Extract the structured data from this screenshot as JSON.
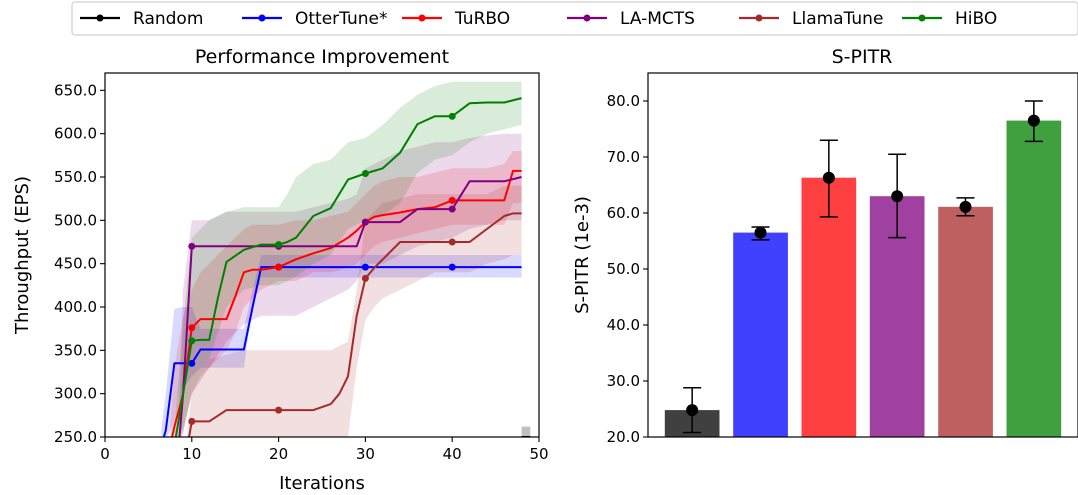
{
  "legend": {
    "entries": [
      {
        "label": "Random",
        "color": "#000000"
      },
      {
        "label": "OtterTune*",
        "color": "#0000ff"
      },
      {
        "label": "TuRBO",
        "color": "#ff0000"
      },
      {
        "label": "LA-MCTS",
        "color": "#800080"
      },
      {
        "label": "LlamaTune",
        "color": "#a52a2a"
      },
      {
        "label": "HiBO",
        "color": "#008000"
      }
    ]
  },
  "chart_data": [
    {
      "type": "line",
      "title": "Performance Improvement",
      "xlabel": "Iterations",
      "ylabel": "Throughput (EPS)",
      "xlim": [
        0,
        50
      ],
      "ylim": [
        250,
        670
      ],
      "xticks": [
        "0",
        "10",
        "20",
        "30",
        "40",
        "50"
      ],
      "xtick_values": [
        0,
        10,
        20,
        30,
        40,
        50
      ],
      "yticks": [
        "250.0",
        "300.0",
        "350.0",
        "400.0",
        "450.0",
        "500.0",
        "550.0",
        "600.0",
        "650.0"
      ],
      "ytick_values": [
        250,
        300,
        350,
        400,
        450,
        500,
        550,
        600,
        650
      ],
      "grid": false,
      "series": [
        {
          "name": "Random",
          "color": "#000000",
          "x": [
            48,
            49
          ],
          "y": [
            250,
            250
          ],
          "band_low": [
            244,
            244
          ],
          "band_high": [
            262,
            262
          ],
          "markers": []
        },
        {
          "name": "OtterTune*",
          "color": "#0000ff",
          "x": [
            6.5,
            7,
            8,
            9,
            10,
            11,
            12,
            13,
            14,
            15,
            16,
            17,
            18,
            19,
            20,
            22,
            24,
            26,
            28,
            30,
            32,
            34,
            36,
            38,
            40,
            42,
            44,
            46,
            48
          ],
          "y": [
            240,
            258,
            335,
            335,
            335,
            351,
            351,
            351,
            351,
            351,
            351,
            400,
            446,
            446,
            446,
            446,
            446,
            446,
            446,
            446,
            446,
            446,
            446,
            446,
            446,
            446,
            446,
            446,
            446
          ],
          "band_low": [
            240,
            245,
            270,
            305,
            320,
            330,
            330,
            330,
            330,
            330,
            330,
            400,
            434,
            434,
            434,
            434,
            434,
            434,
            434,
            434,
            434,
            434,
            434,
            434,
            434,
            434,
            434,
            434,
            434
          ],
          "band_high": [
            260,
            300,
            398,
            400,
            400,
            375,
            375,
            375,
            375,
            375,
            375,
            420,
            460,
            460,
            460,
            460,
            460,
            460,
            460,
            460,
            460,
            460,
            460,
            460,
            460,
            460,
            460,
            460,
            460
          ],
          "markers": [
            10,
            20,
            30,
            40
          ]
        },
        {
          "name": "TuRBO",
          "color": "#ff0000",
          "x": [
            7.5,
            8,
            9,
            10,
            11,
            12,
            13,
            14,
            15,
            16,
            17,
            18,
            20,
            22,
            24,
            26,
            28,
            29,
            30,
            31,
            32,
            34,
            36,
            38,
            40,
            42,
            44,
            46,
            47,
            48
          ],
          "y": [
            240,
            262,
            300,
            376,
            386,
            386,
            386,
            386,
            412,
            440,
            443,
            443,
            446,
            455,
            462,
            468,
            480,
            488,
            498,
            504,
            506,
            509,
            513,
            515,
            523,
            523,
            523,
            523,
            557,
            557
          ],
          "band_low": [
            240,
            245,
            260,
            300,
            320,
            330,
            340,
            350,
            370,
            400,
            410,
            420,
            430,
            430,
            440,
            440,
            445,
            450,
            460,
            470,
            475,
            480,
            485,
            490,
            495,
            495,
            495,
            495,
            520,
            520
          ],
          "band_high": [
            260,
            330,
            390,
            420,
            440,
            450,
            460,
            470,
            480,
            490,
            495,
            495,
            495,
            500,
            500,
            505,
            510,
            520,
            530,
            540,
            545,
            550,
            550,
            555,
            560,
            560,
            560,
            565,
            580,
            580
          ],
          "markers": [
            10,
            20,
            30,
            40
          ]
        },
        {
          "name": "LA-MCTS",
          "color": "#800080",
          "x": [
            8.5,
            9,
            10,
            12,
            14,
            16,
            18,
            20,
            22,
            24,
            26,
            28,
            29,
            30,
            32,
            34,
            36,
            38,
            40,
            42,
            44,
            46,
            48
          ],
          "y": [
            240,
            300,
            470,
            470,
            470,
            470,
            470,
            470,
            470,
            470,
            470,
            470,
            470,
            498,
            498,
            498,
            513,
            513,
            513,
            545,
            545,
            545,
            550
          ],
          "band_low": [
            240,
            255,
            300,
            330,
            360,
            380,
            390,
            390,
            390,
            400,
            410,
            420,
            430,
            450,
            450,
            460,
            470,
            475,
            480,
            490,
            495,
            500,
            500
          ],
          "band_high": [
            260,
            420,
            500,
            500,
            510,
            510,
            510,
            510,
            510,
            515,
            520,
            525,
            530,
            560,
            570,
            580,
            585,
            590,
            590,
            595,
            598,
            600,
            600
          ],
          "markers": [
            10,
            20,
            30,
            40
          ]
        },
        {
          "name": "LlamaTune",
          "color": "#a52a2a",
          "x": [
            9.5,
            10,
            12,
            14,
            16,
            18,
            20,
            22,
            24,
            26,
            27,
            28,
            29,
            30,
            31,
            32,
            34,
            36,
            38,
            40,
            42,
            44,
            46,
            47,
            48
          ],
          "y": [
            240,
            268,
            268,
            281,
            281,
            281,
            281,
            281,
            281,
            288,
            300,
            320,
            390,
            433,
            445,
            455,
            475,
            475,
            475,
            475,
            475,
            490,
            505,
            508,
            508
          ],
          "band_low": [
            240,
            245,
            250,
            250,
            250,
            250,
            250,
            250,
            250,
            250,
            250,
            250,
            330,
            385,
            400,
            410,
            420,
            430,
            440,
            440,
            440,
            450,
            455,
            460,
            460
          ],
          "band_high": [
            260,
            300,
            340,
            345,
            350,
            350,
            350,
            350,
            350,
            350,
            355,
            360,
            420,
            500,
            510,
            520,
            525,
            530,
            530,
            530,
            530,
            530,
            540,
            540,
            540
          ],
          "markers": [
            10,
            20,
            30,
            40
          ]
        },
        {
          "name": "HiBO",
          "color": "#008000",
          "x": [
            8,
            9,
            10,
            11,
            12,
            13,
            14,
            16,
            18,
            20,
            21,
            22,
            24,
            26,
            28,
            30,
            32,
            34,
            36,
            38,
            40,
            42,
            44,
            46,
            48
          ],
          "y": [
            240,
            300,
            361,
            362,
            362,
            410,
            452,
            466,
            472,
            472,
            475,
            480,
            505,
            514,
            547,
            554,
            560,
            578,
            611,
            620,
            620,
            635,
            636,
            636,
            641
          ],
          "band_low": [
            240,
            255,
            300,
            320,
            340,
            370,
            400,
            420,
            425,
            425,
            430,
            435,
            450,
            460,
            490,
            500,
            505,
            520,
            555,
            570,
            575,
            590,
            600,
            605,
            610
          ],
          "band_high": [
            260,
            380,
            480,
            490,
            500,
            505,
            510,
            515,
            515,
            515,
            530,
            550,
            565,
            570,
            590,
            595,
            610,
            630,
            645,
            655,
            660,
            660,
            660,
            660,
            660
          ],
          "markers": [
            10,
            20,
            30,
            40
          ]
        }
      ]
    },
    {
      "type": "bar",
      "title": "S-PITR",
      "xlabel": "",
      "ylabel": "S-PITR (1e-3)",
      "ylim": [
        20,
        85
      ],
      "yticks": [
        "20.0",
        "30.0",
        "40.0",
        "50.0",
        "60.0",
        "70.0",
        "80.0"
      ],
      "ytick_values": [
        20,
        30,
        40,
        50,
        60,
        70,
        80
      ],
      "grid": false,
      "categories": [
        "Random",
        "OtterTune*",
        "TuRBO",
        "LA-MCTS",
        "LlamaTune",
        "HiBO"
      ],
      "values": [
        24.8,
        56.5,
        66.3,
        63.0,
        61.1,
        76.5
      ],
      "err_low": [
        20.8,
        55.2,
        59.3,
        55.6,
        59.5,
        72.8
      ],
      "err_high": [
        28.8,
        57.5,
        73.0,
        70.5,
        62.7,
        80.0
      ],
      "colors": [
        "#404040",
        "#4040ff",
        "#ff4040",
        "#a040a0",
        "#bf6060",
        "#40a040"
      ]
    }
  ]
}
